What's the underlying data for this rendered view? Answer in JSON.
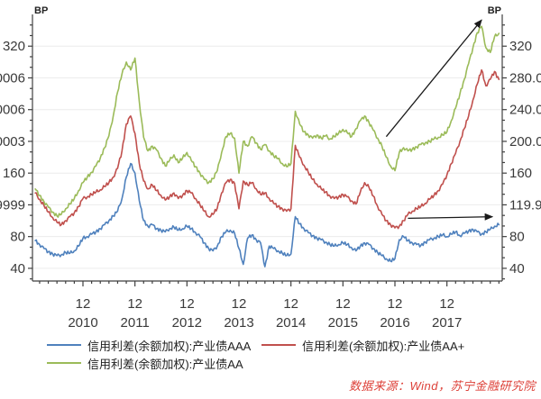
{
  "chart_data": {
    "type": "line",
    "title": "",
    "unit_label": "BP",
    "x_start": "2010-01",
    "x_end": "2018-12",
    "x_frequency": "monthly (read from weekly curve)",
    "grid": "horizontal",
    "legend_position": "bottom",
    "y_axis": {
      "min": 24,
      "max": 360,
      "tick_start": 40,
      "tick_end": 320,
      "tick_step": 40,
      "unit": "BP"
    },
    "x_ticks": [
      {
        "month_label": "12",
        "year_label": "2010",
        "month_index": 11
      },
      {
        "month_label": "12",
        "year_label": "2011",
        "month_index": 23
      },
      {
        "month_label": "12",
        "year_label": "2012",
        "month_index": 35
      },
      {
        "month_label": "12",
        "year_label": "2013",
        "month_index": 47
      },
      {
        "month_label": "12",
        "year_label": "2014",
        "month_index": 59
      },
      {
        "month_label": "12",
        "year_label": "2015",
        "month_index": 71
      },
      {
        "month_label": "12",
        "year_label": "2016",
        "month_index": 83
      },
      {
        "month_label": "12",
        "year_label": "2017",
        "month_index": 95
      }
    ],
    "series": [
      {
        "name": "信用利差(余额加权):产业债AAA",
        "color": "#4f81bd",
        "values": [
          75,
          70,
          65,
          61,
          58,
          56,
          57,
          60,
          59,
          62,
          68,
          78,
          80,
          83,
          86,
          90,
          95,
          100,
          106,
          112,
          128,
          155,
          172,
          160,
          125,
          100,
          93,
          95,
          90,
          88,
          86,
          90,
          92,
          88,
          90,
          93,
          90,
          85,
          80,
          72,
          65,
          62,
          68,
          80,
          86,
          88,
          84,
          65,
          45,
          78,
          82,
          76,
          72,
          42,
          68,
          65,
          62,
          59,
          56,
          58,
          105,
          96,
          90,
          85,
          81,
          78,
          76,
          73,
          70,
          68,
          70,
          72,
          70,
          66,
          62,
          68,
          72,
          70,
          65,
          60,
          56,
          52,
          49,
          52,
          76,
          80,
          75,
          72,
          70,
          69,
          73,
          76,
          78,
          80,
          82,
          80,
          83,
          86,
          81,
          84,
          87,
          89,
          86,
          83,
          86,
          89,
          93,
          95
        ]
      },
      {
        "name": "信用利差(余额加权):产业债AA+",
        "color": "#c0504d",
        "values": [
          135,
          127,
          119,
          111,
          104,
          98,
          95,
          100,
          105,
          110,
          118,
          128,
          130,
          133,
          136,
          139,
          143,
          148,
          155,
          166,
          188,
          222,
          232,
          210,
          172,
          150,
          140,
          145,
          138,
          132,
          126,
          130,
          135,
          128,
          132,
          138,
          135,
          128,
          120,
          112,
          105,
          108,
          116,
          135,
          148,
          152,
          147,
          115,
          150,
          145,
          148,
          140,
          133,
          135,
          128,
          122,
          118,
          115,
          112,
          115,
          195,
          180,
          170,
          161,
          152,
          146,
          140,
          136,
          131,
          128,
          130,
          133,
          130,
          125,
          121,
          136,
          148,
          142,
          131,
          118,
          108,
          100,
          95,
          91,
          93,
          100,
          108,
          112,
          115,
          118,
          122,
          127,
          132,
          138,
          146,
          158,
          172,
          185,
          200,
          216,
          232,
          252,
          272,
          290,
          270,
          278,
          288,
          278
        ]
      },
      {
        "name": "信用利差(余额加权):产业债AA",
        "color": "#9bbb59",
        "values": [
          140,
          132,
          124,
          117,
          111,
          106,
          108,
          115,
          121,
          128,
          138,
          148,
          155,
          161,
          169,
          179,
          192,
          207,
          232,
          262,
          285,
          300,
          290,
          305,
          250,
          205,
          188,
          194,
          189,
          179,
          169,
          176,
          183,
          173,
          179,
          186,
          176,
          168,
          160,
          152,
          148,
          153,
          163,
          186,
          206,
          210,
          204,
          160,
          200,
          194,
          206,
          198,
          190,
          196,
          188,
          182,
          178,
          172,
          168,
          172,
          238,
          222,
          212,
          208,
          204,
          208,
          204,
          207,
          203,
          206,
          210,
          215,
          211,
          206,
          216,
          226,
          232,
          224,
          214,
          204,
          194,
          180,
          169,
          163,
          186,
          192,
          188,
          190,
          193,
          196,
          198,
          200,
          203,
          205,
          208,
          212,
          226,
          242,
          260,
          278,
          298,
          318,
          337,
          345,
          318,
          312,
          332,
          336
        ]
      }
    ],
    "annotations": [
      {
        "type": "arrow",
        "direction": "up-right",
        "from": [
          81,
          206
        ],
        "to": [
          103,
          353
        ]
      },
      {
        "type": "arrow",
        "direction": "right",
        "from": [
          86,
          103
        ],
        "to": [
          105.5,
          105
        ]
      }
    ]
  },
  "legend": {
    "items": [
      {
        "label": "信用利差(余额加权):产业债AAA",
        "color": "#4f81bd"
      },
      {
        "label": "信用利差(余额加权):产业债AA+",
        "color": "#c0504d"
      },
      {
        "label": "信用利差(余额加权):产业债AA",
        "color": "#9bbb59"
      }
    ]
  },
  "source": {
    "text": "数据来源：Wind，苏宁金融研究院"
  }
}
